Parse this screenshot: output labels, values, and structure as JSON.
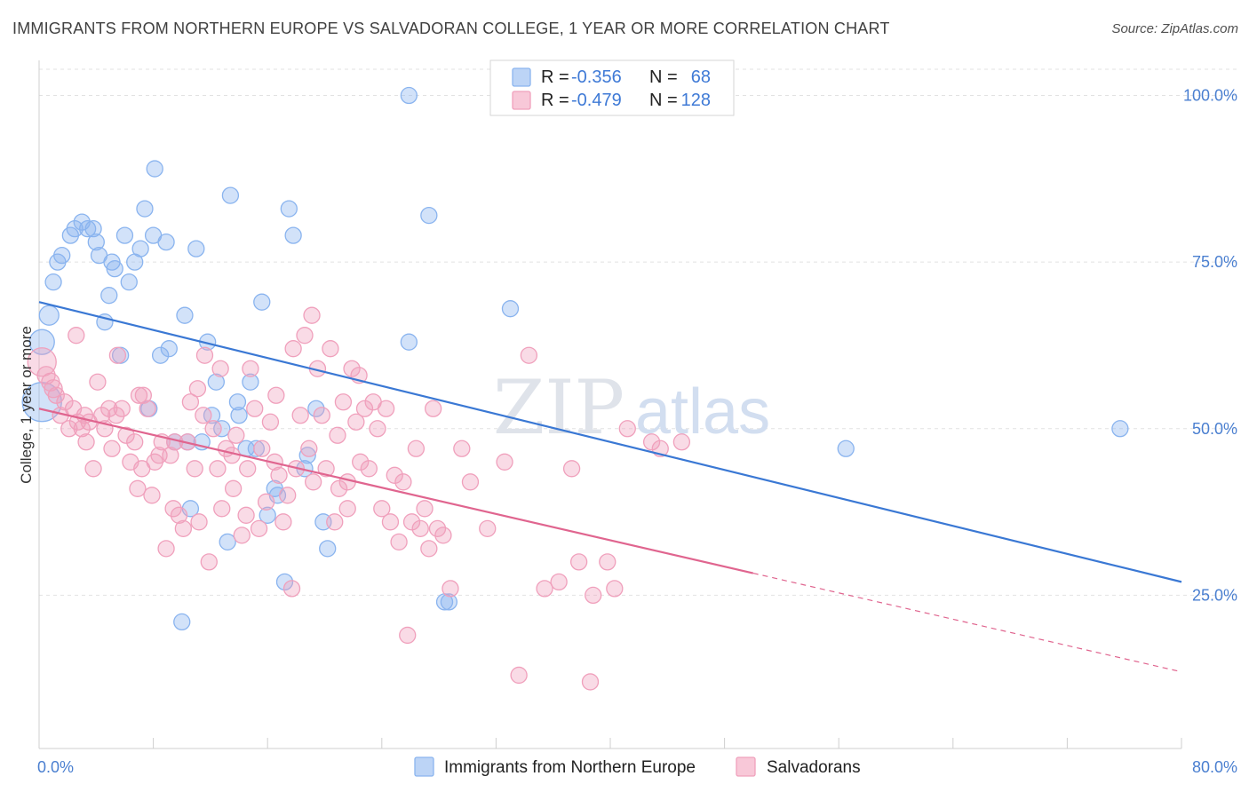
{
  "header": {
    "title": "IMMIGRANTS FROM NORTHERN EUROPE VS SALVADORAN COLLEGE, 1 YEAR OR MORE CORRELATION CHART",
    "source": "Source: ZipAtlas.com"
  },
  "watermark": {
    "part1": "ZIP",
    "part2": "atlas"
  },
  "legend": {
    "rows": [
      {
        "r_label": "R =",
        "r_value": "-0.356",
        "n_label": "N =",
        "n_value": "68",
        "color": "#8ab4ef",
        "fill": "#bcd4f6"
      },
      {
        "r_label": "R =",
        "r_value": "-0.479",
        "n_label": "N =",
        "n_value": "128",
        "color": "#f0a0bc",
        "fill": "#f8c8d8"
      }
    ]
  },
  "bottom_legend": [
    {
      "label": "Immigrants from Northern Europe",
      "color": "#8ab4ef",
      "fill": "#bcd4f6"
    },
    {
      "label": "Salvadorans",
      "color": "#f0a0bc",
      "fill": "#f8c8d8"
    }
  ],
  "chart_data": {
    "type": "scatter",
    "title": "IMMIGRANTS FROM NORTHERN EUROPE VS SALVADORAN COLLEGE, 1 YEAR OR MORE CORRELATION CHART",
    "xlabel": "",
    "ylabel": "College, 1 year or more",
    "xlim": [
      0,
      80
    ],
    "ylim": [
      2,
      105
    ],
    "x_tick_labels": [
      "0.0%",
      "80.0%"
    ],
    "y_ticks": [
      25,
      50,
      75,
      100
    ],
    "y_tick_labels": [
      "25.0%",
      "50.0%",
      "75.0%",
      "100.0%"
    ],
    "grid": true,
    "legend_position": "top-center",
    "series": [
      {
        "name": "Immigrants from Northern Europe",
        "color": "#3a78d4",
        "point_color": "#8ab4ef",
        "R": -0.356,
        "N": 68,
        "trend": {
          "x0": 0,
          "y0": 69.0,
          "x1": 80,
          "y1": 27.0,
          "solid_to": 80
        },
        "points": [
          [
            0.2,
            54,
            22
          ],
          [
            0.2,
            63,
            14
          ],
          [
            0.7,
            67,
            11
          ],
          [
            1,
            72,
            9
          ],
          [
            1.3,
            75,
            9
          ],
          [
            1.6,
            76,
            9
          ],
          [
            2.2,
            79,
            9
          ],
          [
            2.5,
            80,
            9
          ],
          [
            3,
            81,
            9
          ],
          [
            3.4,
            80,
            9
          ],
          [
            3.8,
            80,
            9
          ],
          [
            4,
            78,
            9
          ],
          [
            4.2,
            76,
            9
          ],
          [
            4.6,
            66,
            9
          ],
          [
            4.9,
            70,
            9
          ],
          [
            5.1,
            75,
            9
          ],
          [
            5.3,
            74,
            9
          ],
          [
            5.7,
            61,
            9
          ],
          [
            6,
            79,
            9
          ],
          [
            6.3,
            72,
            9
          ],
          [
            6.7,
            75,
            9
          ],
          [
            7.1,
            77,
            9
          ],
          [
            7.4,
            83,
            9
          ],
          [
            7.7,
            53,
            9
          ],
          [
            8,
            79,
            9
          ],
          [
            8.1,
            89,
            9
          ],
          [
            8.5,
            61,
            9
          ],
          [
            8.9,
            78,
            9
          ],
          [
            9.1,
            62,
            9
          ],
          [
            9.5,
            48,
            9
          ],
          [
            10,
            21,
            9
          ],
          [
            10.2,
            67,
            9
          ],
          [
            10.4,
            48,
            9
          ],
          [
            10.6,
            38,
            9
          ],
          [
            11,
            77,
            9
          ],
          [
            11.4,
            48,
            9
          ],
          [
            11.8,
            63,
            9
          ],
          [
            12.1,
            52,
            9
          ],
          [
            12.4,
            57,
            9
          ],
          [
            12.8,
            50,
            9
          ],
          [
            13.2,
            33,
            9
          ],
          [
            13.4,
            85,
            9
          ],
          [
            13.9,
            54,
            9
          ],
          [
            14,
            52,
            9
          ],
          [
            14.5,
            47,
            9
          ],
          [
            14.8,
            57,
            9
          ],
          [
            15.2,
            47,
            9
          ],
          [
            15.6,
            69,
            9
          ],
          [
            16,
            37,
            9
          ],
          [
            16.5,
            41,
            9
          ],
          [
            16.7,
            40,
            9
          ],
          [
            17.2,
            27,
            9
          ],
          [
            17.5,
            83,
            9
          ],
          [
            17.8,
            79,
            9
          ],
          [
            18.6,
            44,
            9
          ],
          [
            18.8,
            46,
            9
          ],
          [
            19.4,
            53,
            9
          ],
          [
            19.9,
            36,
            9
          ],
          [
            20.2,
            32,
            9
          ],
          [
            25.9,
            100,
            9
          ],
          [
            25.9,
            63,
            9
          ],
          [
            27.3,
            82,
            9
          ],
          [
            28.4,
            24,
            9
          ],
          [
            28.7,
            24,
            9
          ],
          [
            33.0,
            68,
            9
          ],
          [
            56.5,
            47,
            9
          ],
          [
            75.7,
            50,
            9
          ]
        ]
      },
      {
        "name": "Salvadorans",
        "color": "#e0658f",
        "point_color": "#f0a0bc",
        "R": -0.479,
        "N": 128,
        "trend": {
          "x0": 0,
          "y0": 53.0,
          "x1": 80,
          "y1": 13.5,
          "solid_to": 50
        },
        "points": [
          [
            0.2,
            60,
            16
          ],
          [
            0.5,
            58,
            10
          ],
          [
            0.8,
            57,
            10
          ],
          [
            1,
            56,
            10
          ],
          [
            1.2,
            55,
            9
          ],
          [
            1.5,
            52,
            9
          ],
          [
            1.8,
            54,
            9
          ],
          [
            2.1,
            50,
            9
          ],
          [
            2.4,
            53,
            9
          ],
          [
            2.7,
            51,
            9
          ],
          [
            3,
            50,
            9
          ],
          [
            3.2,
            52,
            9
          ],
          [
            3.5,
            51,
            9
          ],
          [
            3.8,
            44,
            9
          ],
          [
            4.1,
            57,
            9
          ],
          [
            4.4,
            52,
            9
          ],
          [
            4.6,
            50,
            9
          ],
          [
            4.9,
            53,
            9
          ],
          [
            5.1,
            47,
            9
          ],
          [
            5.4,
            52,
            9
          ],
          [
            5.8,
            53,
            9
          ],
          [
            6.1,
            49,
            9
          ],
          [
            6.4,
            45,
            9
          ],
          [
            6.7,
            48,
            9
          ],
          [
            7,
            55,
            9
          ],
          [
            7.2,
            44,
            9
          ],
          [
            7.6,
            53,
            9
          ],
          [
            7.9,
            40,
            9
          ],
          [
            8.1,
            45,
            9
          ],
          [
            8.4,
            46,
            9
          ],
          [
            8.6,
            48,
            9
          ],
          [
            8.9,
            32,
            9
          ],
          [
            9.2,
            46,
            9
          ],
          [
            9.5,
            48,
            9
          ],
          [
            9.8,
            37,
            9
          ],
          [
            10.1,
            35,
            9
          ],
          [
            10.4,
            48,
            9
          ],
          [
            10.6,
            54,
            9
          ],
          [
            10.9,
            44,
            9
          ],
          [
            11.2,
            36,
            9
          ],
          [
            11.5,
            52,
            9
          ],
          [
            11.9,
            30,
            9
          ],
          [
            12.2,
            50,
            9
          ],
          [
            12.5,
            44,
            9
          ],
          [
            12.8,
            38,
            9
          ],
          [
            13.1,
            47,
            9
          ],
          [
            13.5,
            46,
            9
          ],
          [
            13.8,
            49,
            9
          ],
          [
            14.2,
            34,
            9
          ],
          [
            14.5,
            37,
            9
          ],
          [
            14.8,
            59,
            9
          ],
          [
            15.1,
            53,
            9
          ],
          [
            15.4,
            35,
            9
          ],
          [
            15.6,
            47,
            9
          ],
          [
            15.9,
            39,
            9
          ],
          [
            16.2,
            51,
            9
          ],
          [
            16.5,
            45,
            9
          ],
          [
            16.8,
            43,
            9
          ],
          [
            17.1,
            36,
            9
          ],
          [
            17.4,
            40,
            9
          ],
          [
            17.7,
            26,
            9
          ],
          [
            18,
            44,
            9
          ],
          [
            18.3,
            52,
            9
          ],
          [
            18.6,
            64,
            9
          ],
          [
            18.9,
            47,
            9
          ],
          [
            19.2,
            42,
            9
          ],
          [
            19.5,
            59,
            9
          ],
          [
            19.8,
            52,
            9
          ],
          [
            20.1,
            44,
            9
          ],
          [
            20.4,
            62,
            9
          ],
          [
            20.7,
            36,
            9
          ],
          [
            21,
            41,
            9
          ],
          [
            21.3,
            54,
            9
          ],
          [
            21.6,
            42,
            9
          ],
          [
            21.9,
            59,
            9
          ],
          [
            22.2,
            51,
            9
          ],
          [
            22.5,
            45,
            9
          ],
          [
            22.8,
            53,
            9
          ],
          [
            23.1,
            44,
            9
          ],
          [
            23.4,
            54,
            9
          ],
          [
            23.7,
            50,
            9
          ],
          [
            24,
            38,
            9
          ],
          [
            24.3,
            53,
            9
          ],
          [
            24.6,
            36,
            9
          ],
          [
            24.9,
            43,
            9
          ],
          [
            25.2,
            33,
            9
          ],
          [
            25.5,
            42,
            9
          ],
          [
            25.8,
            19,
            9
          ],
          [
            26.1,
            36,
            9
          ],
          [
            26.4,
            47,
            9
          ],
          [
            26.7,
            35,
            9
          ],
          [
            27,
            38,
            9
          ],
          [
            27.3,
            32,
            9
          ],
          [
            27.6,
            53,
            9
          ],
          [
            27.9,
            35,
            9
          ],
          [
            28.3,
            34,
            9
          ],
          [
            28.8,
            26,
            9
          ],
          [
            29.6,
            47,
            9
          ],
          [
            30.2,
            42,
            9
          ],
          [
            31.4,
            35,
            9
          ],
          [
            32.6,
            45,
            9
          ],
          [
            33.6,
            13,
            9
          ],
          [
            34.3,
            61,
            9
          ],
          [
            35.4,
            26,
            9
          ],
          [
            36.4,
            27,
            9
          ],
          [
            37.3,
            44,
            9
          ],
          [
            37.8,
            30,
            9
          ],
          [
            38.8,
            25,
            9
          ],
          [
            38.6,
            12,
            9
          ],
          [
            39.8,
            30,
            9
          ],
          [
            40.3,
            26,
            9
          ],
          [
            41.2,
            50,
            9
          ],
          [
            42.9,
            48,
            9
          ],
          [
            43.5,
            47,
            9
          ],
          [
            45.0,
            48,
            9
          ],
          [
            11.1,
            56,
            9
          ],
          [
            9.4,
            38,
            9
          ],
          [
            7.3,
            55,
            9
          ],
          [
            6.9,
            41,
            9
          ],
          [
            5.5,
            61,
            9
          ],
          [
            3.3,
            48,
            9
          ],
          [
            2.6,
            64,
            9
          ],
          [
            16.6,
            55,
            9
          ],
          [
            19.1,
            67,
            9
          ],
          [
            17.8,
            62,
            9
          ],
          [
            20.9,
            49,
            9
          ],
          [
            22.4,
            58,
            9
          ],
          [
            14.6,
            44,
            9
          ],
          [
            12.7,
            59,
            9
          ],
          [
            13.6,
            41,
            9
          ],
          [
            11.6,
            61,
            9
          ],
          [
            21.6,
            38,
            9
          ]
        ]
      }
    ]
  }
}
